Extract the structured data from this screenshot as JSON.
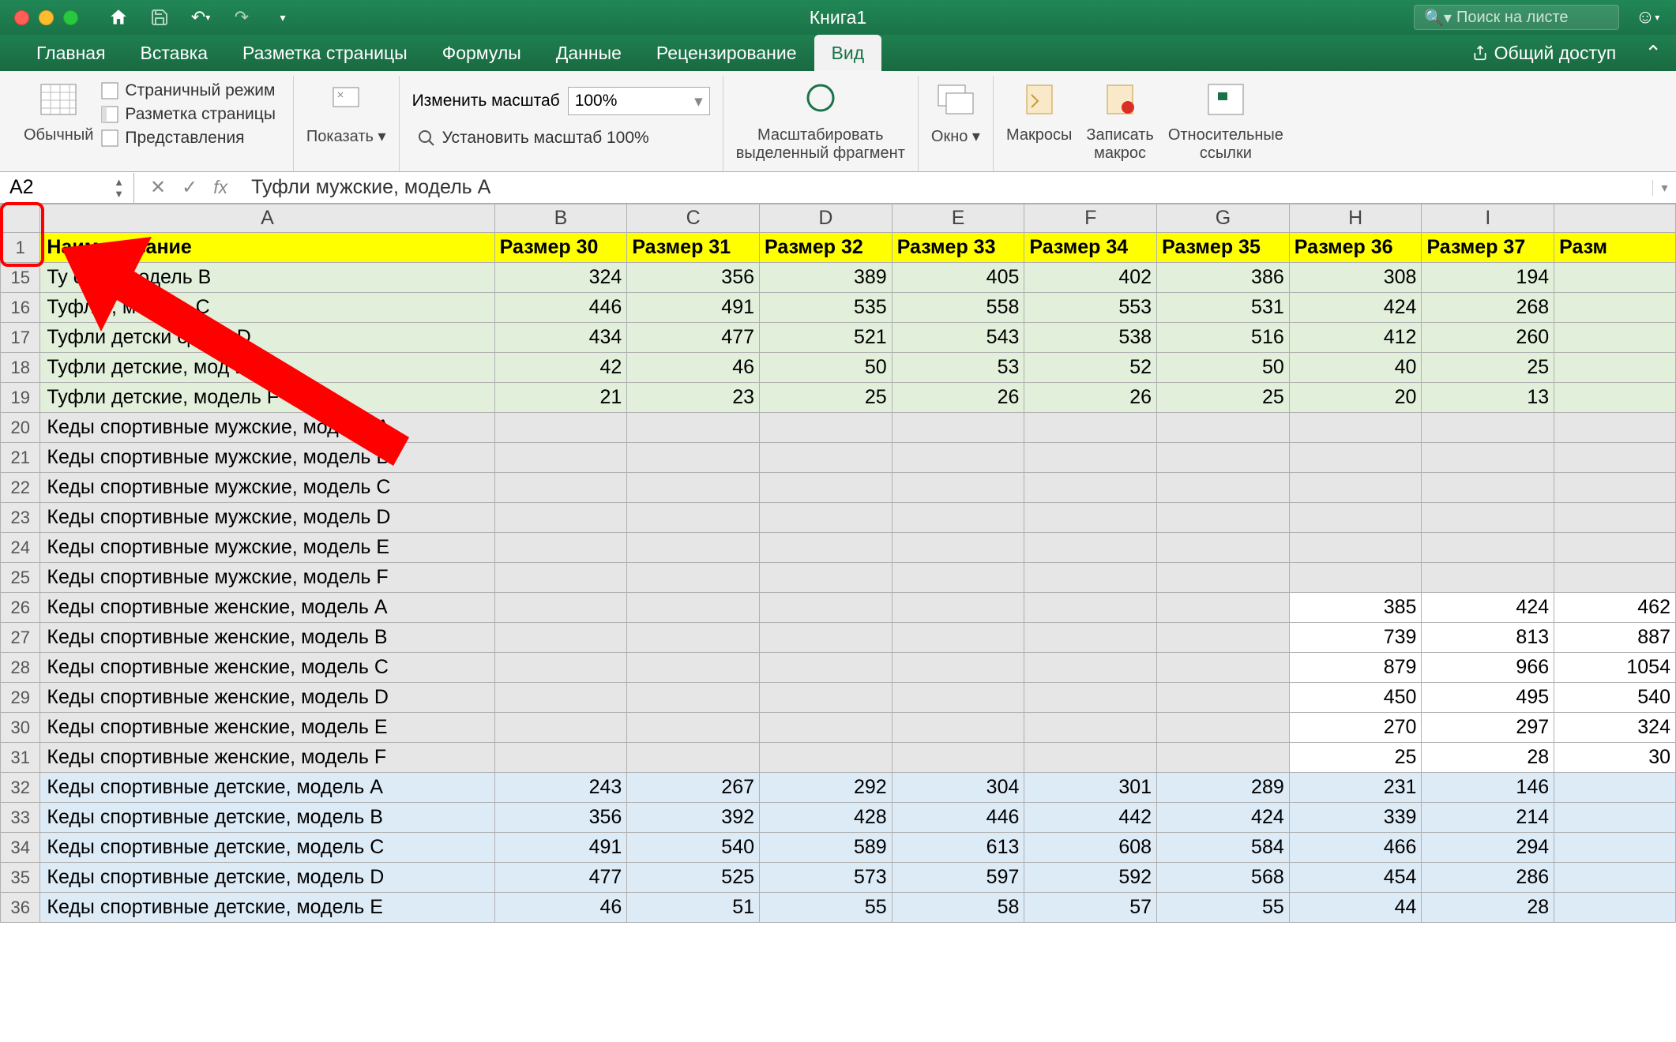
{
  "window": {
    "title": "Книга1",
    "search_placeholder": "Поиск на листе"
  },
  "tabs": {
    "items": [
      "Главная",
      "Вставка",
      "Разметка страницы",
      "Формулы",
      "Данные",
      "Рецензирование",
      "Вид"
    ],
    "active_index": 6,
    "share_label": "Общий доступ"
  },
  "ribbon": {
    "normal_view": "Обычный",
    "page_break": "Страничный режим",
    "page_layout": "Разметка страницы",
    "custom_views": "Представления",
    "show": "Показать",
    "zoom_label": "Изменить масштаб",
    "zoom_value": "100%",
    "zoom_100": "Установить масштаб 100%",
    "zoom_selection_1": "Масштабировать",
    "zoom_selection_2": "выделенный фрагмент",
    "window": "Окно",
    "macros": "Макросы",
    "record_macro_1": "Записать",
    "record_macro_2": "макрос",
    "relative_refs_1": "Относительные",
    "relative_refs_2": "ссылки"
  },
  "fbar": {
    "name": "A2",
    "formula": "Туфли мужские, модель A"
  },
  "columns": [
    "A",
    "B",
    "C",
    "D",
    "E",
    "F",
    "G",
    "H",
    "I",
    ""
  ],
  "col_a_width": 610,
  "data_col_width": 176,
  "header_row": {
    "num": 1,
    "cells": [
      "Наименование",
      "Размер 30",
      "Размер 31",
      "Размер 32",
      "Размер 33",
      "Размер 34",
      "Размер 35",
      "Размер 36",
      "Размер 37",
      "Разм"
    ]
  },
  "rows": [
    {
      "num": 15,
      "cls": "bg-green",
      "a": "Ту                 ские, модель B",
      "v": [
        324,
        356,
        389,
        405,
        402,
        386,
        308,
        194,
        ""
      ]
    },
    {
      "num": 16,
      "cls": "bg-green",
      "a": "Туфл                 е, модель C",
      "v": [
        446,
        491,
        535,
        558,
        553,
        531,
        424,
        268,
        ""
      ]
    },
    {
      "num": 17,
      "cls": "bg-green",
      "a": "Туфли детски           одель D",
      "v": [
        434,
        477,
        521,
        543,
        538,
        516,
        412,
        260,
        ""
      ]
    },
    {
      "num": 18,
      "cls": "bg-green",
      "a": "Туфли детские, мод        E",
      "v": [
        42,
        46,
        50,
        53,
        52,
        50,
        40,
        25,
        ""
      ]
    },
    {
      "num": 19,
      "cls": "bg-green",
      "a": "Туфли детские, модель F",
      "v": [
        21,
        23,
        25,
        26,
        26,
        25,
        20,
        13,
        ""
      ]
    },
    {
      "num": 20,
      "cls": "bg-grey",
      "a": "Кеды спортивные мужские, модель A",
      "v": [
        "",
        "",
        "",
        "",
        "",
        "",
        "",
        "",
        ""
      ]
    },
    {
      "num": 21,
      "cls": "bg-grey",
      "a": "Кеды спортивные мужские, модель B",
      "v": [
        "",
        "",
        "",
        "",
        "",
        "",
        "",
        "",
        ""
      ]
    },
    {
      "num": 22,
      "cls": "bg-grey",
      "a": "Кеды спортивные мужские, модель C",
      "v": [
        "",
        "",
        "",
        "",
        "",
        "",
        "",
        "",
        ""
      ]
    },
    {
      "num": 23,
      "cls": "bg-grey",
      "a": "Кеды спортивные мужские, модель D",
      "v": [
        "",
        "",
        "",
        "",
        "",
        "",
        "",
        "",
        ""
      ]
    },
    {
      "num": 24,
      "cls": "bg-grey",
      "a": "Кеды спортивные мужские, модель E",
      "v": [
        "",
        "",
        "",
        "",
        "",
        "",
        "",
        "",
        ""
      ]
    },
    {
      "num": 25,
      "cls": "bg-grey",
      "a": "Кеды спортивные мужские, модель F",
      "v": [
        "",
        "",
        "",
        "",
        "",
        "",
        "",
        "",
        ""
      ]
    },
    {
      "num": 26,
      "cls": "bg-grey",
      "a": "Кеды спортивные женские, модель A",
      "v": [
        "",
        "",
        "",
        "",
        "",
        "",
        385,
        424,
        462
      ],
      "white_from": 6
    },
    {
      "num": 27,
      "cls": "bg-grey",
      "a": "Кеды спортивные женские, модель B",
      "v": [
        "",
        "",
        "",
        "",
        "",
        "",
        739,
        813,
        887
      ],
      "white_from": 6
    },
    {
      "num": 28,
      "cls": "bg-grey",
      "a": "Кеды спортивные женские, модель C",
      "v": [
        "",
        "",
        "",
        "",
        "",
        "",
        879,
        966,
        1054
      ],
      "white_from": 6
    },
    {
      "num": 29,
      "cls": "bg-grey",
      "a": "Кеды спортивные женские, модель D",
      "v": [
        "",
        "",
        "",
        "",
        "",
        "",
        450,
        495,
        540
      ],
      "white_from": 6
    },
    {
      "num": 30,
      "cls": "bg-grey",
      "a": "Кеды спортивные женские, модель E",
      "v": [
        "",
        "",
        "",
        "",
        "",
        "",
        270,
        297,
        324
      ],
      "white_from": 6
    },
    {
      "num": 31,
      "cls": "bg-grey",
      "a": "Кеды спортивные женские, модель F",
      "v": [
        "",
        "",
        "",
        "",
        "",
        "",
        25,
        28,
        30
      ],
      "white_from": 6
    },
    {
      "num": 32,
      "cls": "bg-blue",
      "a": "Кеды спортивные детские, модель A",
      "v": [
        243,
        267,
        292,
        304,
        301,
        289,
        231,
        146,
        ""
      ]
    },
    {
      "num": 33,
      "cls": "bg-blue",
      "a": "Кеды спортивные детские, модель B",
      "v": [
        356,
        392,
        428,
        446,
        442,
        424,
        339,
        214,
        ""
      ]
    },
    {
      "num": 34,
      "cls": "bg-blue",
      "a": "Кеды спортивные детские, модель C",
      "v": [
        491,
        540,
        589,
        613,
        608,
        584,
        466,
        294,
        ""
      ]
    },
    {
      "num": 35,
      "cls": "bg-blue",
      "a": "Кеды спортивные детские, модель D",
      "v": [
        477,
        525,
        573,
        597,
        592,
        568,
        454,
        286,
        ""
      ]
    },
    {
      "num": 36,
      "cls": "bg-blue",
      "a": "Кеды спортивные детские, модель E",
      "v": [
        46,
        51,
        55,
        58,
        57,
        55,
        44,
        28,
        ""
      ]
    }
  ],
  "colors": {
    "accent": "#1a7348",
    "header_yellow": "#ffff00",
    "green_bg": "#e2efda",
    "grey_bg": "#e6e6e6",
    "blue_bg": "#ddebf7",
    "arrow": "#ff0000"
  }
}
